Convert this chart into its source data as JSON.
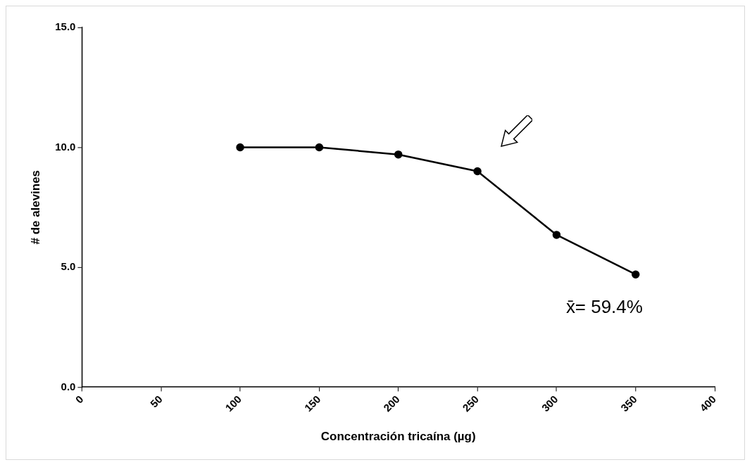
{
  "chart_data": {
    "type": "line",
    "xlabel": "Concentración tricaína (µg)",
    "ylabel": "# de alevines",
    "x": [
      100,
      150,
      200,
      250,
      300,
      350
    ],
    "series": [
      {
        "color": "#000000",
        "values": [
          10.0,
          10.0,
          9.7,
          9.0,
          6.35,
          4.7
        ]
      }
    ],
    "xlim": [
      0,
      400
    ],
    "xticks": [
      0,
      50,
      100,
      150,
      200,
      250,
      300,
      350,
      400
    ],
    "ylim": [
      0,
      15
    ],
    "yticks": [
      {
        "value": 0,
        "label": "0.0"
      },
      {
        "value": 5,
        "label": "5.0"
      },
      {
        "value": 10,
        "label": "10.0"
      },
      {
        "value": 15,
        "label": "15.0"
      }
    ],
    "annotations": [
      "x̄= 59.4%"
    ],
    "marker": "circle",
    "line_style": "solid",
    "legend": false,
    "grid": false
  }
}
